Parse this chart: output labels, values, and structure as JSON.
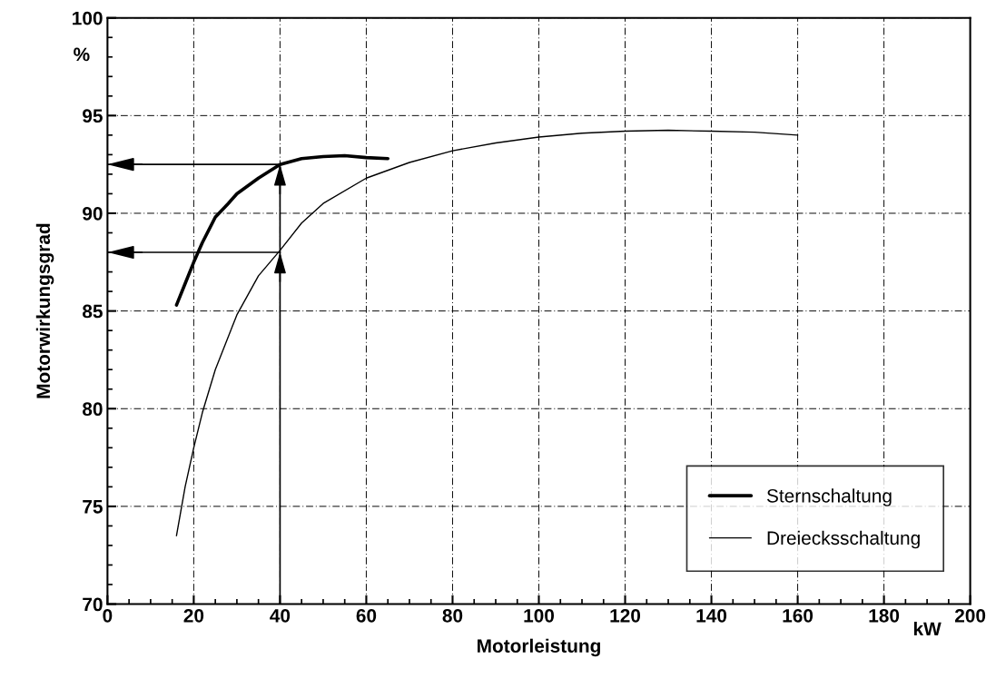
{
  "chart_data": {
    "type": "line",
    "xlabel": "Motorleistung",
    "ylabel": "Motorwirkungsgrad",
    "xlim": [
      0,
      200
    ],
    "xticks": [
      0,
      20,
      40,
      60,
      80,
      100,
      120,
      140,
      160,
      180,
      200
    ],
    "ylim": [
      70,
      100
    ],
    "yticks": [
      70,
      75,
      80,
      85,
      90,
      95,
      100
    ],
    "grid": true,
    "legend": "bottom right",
    "line_style": "solid",
    "annotations": [
      "%",
      "kW"
    ],
    "ref_lines": [
      {
        "axis": "x",
        "value": 40,
        "color": "#000000"
      },
      {
        "axis": "y",
        "value": 92.5,
        "color": "#000000"
      },
      {
        "axis": "y",
        "value": 88,
        "color": "#000000"
      }
    ],
    "series": [
      {
        "name": "Sternschaltung",
        "color": "#000000",
        "x": [
          16,
          18,
          20,
          22,
          25,
          28,
          30,
          35,
          40,
          45,
          50,
          55,
          60,
          65
        ],
        "values": [
          85.3,
          86.4,
          87.5,
          88.5,
          89.8,
          90.5,
          91.0,
          91.8,
          92.5,
          92.8,
          92.9,
          92.95,
          92.85,
          92.8
        ]
      },
      {
        "name": "Dreiecksschaltung",
        "color": "#000000",
        "x": [
          16,
          18,
          20,
          22,
          25,
          30,
          35,
          40,
          45,
          50,
          60,
          70,
          80,
          90,
          100,
          110,
          120,
          130,
          140,
          150,
          160
        ],
        "values": [
          73.5,
          76.0,
          78.0,
          79.8,
          82.0,
          84.8,
          86.8,
          88.1,
          89.5,
          90.5,
          91.8,
          92.6,
          93.2,
          93.6,
          93.9,
          94.1,
          94.2,
          94.25,
          94.2,
          94.15,
          94.0
        ]
      }
    ]
  }
}
